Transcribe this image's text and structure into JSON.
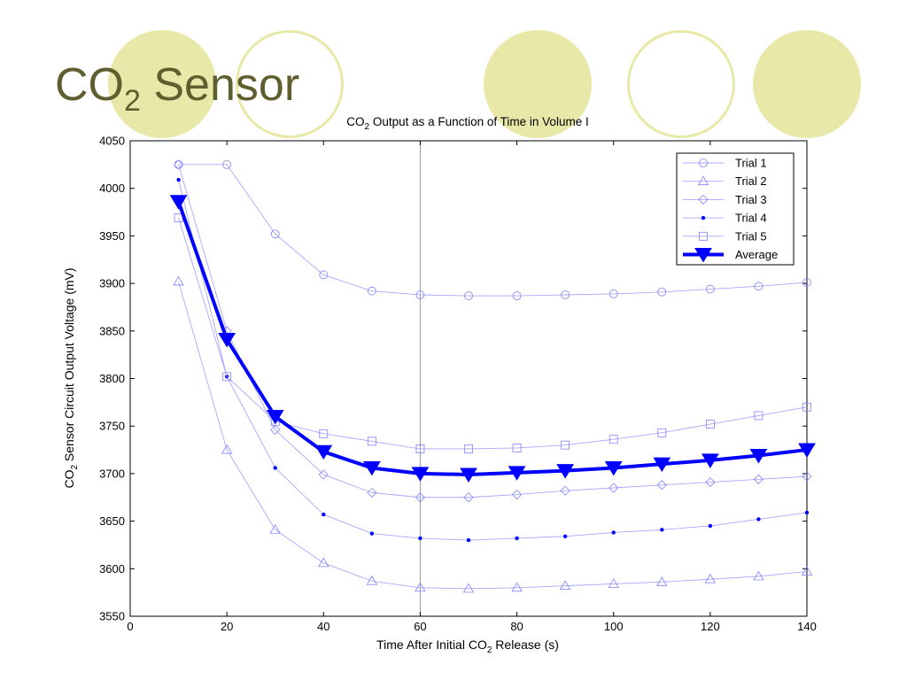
{
  "slide": {
    "title_main": "CO",
    "title_sub": "2",
    "title_rest": " Sensor",
    "palette": {
      "circle_fill": "#e8e8a8",
      "circle_ring": "#e8e8a8",
      "title_color": "#5e5e2e",
      "series_color": "#0000ff"
    }
  },
  "chart_data": {
    "type": "line",
    "title_parts": [
      "CO",
      "2",
      " Output as a Function of Time in Volume I"
    ],
    "xlabel_parts": [
      "Time After Initial CO",
      "2",
      " Release (s)"
    ],
    "ylabel_parts": [
      "CO",
      "2",
      " Sensor Circuit Output Voltage (mV)"
    ],
    "xlim": [
      0,
      140
    ],
    "ylim": [
      3550,
      4050
    ],
    "xticks": [
      0,
      20,
      40,
      60,
      80,
      100,
      120,
      140
    ],
    "yticks": [
      3550,
      3600,
      3650,
      3700,
      3750,
      3800,
      3850,
      3900,
      3950,
      4000,
      4050
    ],
    "grid": false,
    "vertical_reference_line": 60,
    "legend_position": "top-right",
    "x": [
      10,
      20,
      30,
      40,
      50,
      60,
      70,
      80,
      90,
      100,
      110,
      120,
      130,
      140
    ],
    "series": [
      {
        "name": "Trial 1",
        "marker": "circle",
        "values": [
          4025,
          4025,
          3952,
          3909,
          3892,
          3888,
          3887,
          3887,
          3888,
          3889,
          3891,
          3894,
          3897,
          3901
        ]
      },
      {
        "name": "Trial 2",
        "marker": "triangle-up",
        "values": [
          3902,
          3725,
          3641,
          3606,
          3587,
          3580,
          3579,
          3580,
          3582,
          3584,
          3586,
          3589,
          3592,
          3597
        ]
      },
      {
        "name": "Trial 3",
        "marker": "diamond",
        "values": [
          4025,
          3850,
          3746,
          3699,
          3680,
          3675,
          3675,
          3678,
          3682,
          3685,
          3688,
          3691,
          3694,
          3697
        ]
      },
      {
        "name": "Trial 4",
        "marker": "dot",
        "values": [
          4009,
          3802,
          3706,
          3657,
          3637,
          3632,
          3630,
          3632,
          3634,
          3638,
          3641,
          3645,
          3652,
          3659
        ]
      },
      {
        "name": "Trial 5",
        "marker": "square",
        "values": [
          3969,
          3802,
          3755,
          3742,
          3734,
          3726,
          3726,
          3727,
          3730,
          3736,
          3743,
          3752,
          3761,
          3770
        ]
      },
      {
        "name": "Average",
        "marker": "triangle-down",
        "bold": true,
        "values": [
          3986,
          3841,
          3760,
          3723,
          3706,
          3700,
          3699,
          3701,
          3703,
          3706,
          3710,
          3714,
          3719,
          3725
        ]
      }
    ]
  }
}
